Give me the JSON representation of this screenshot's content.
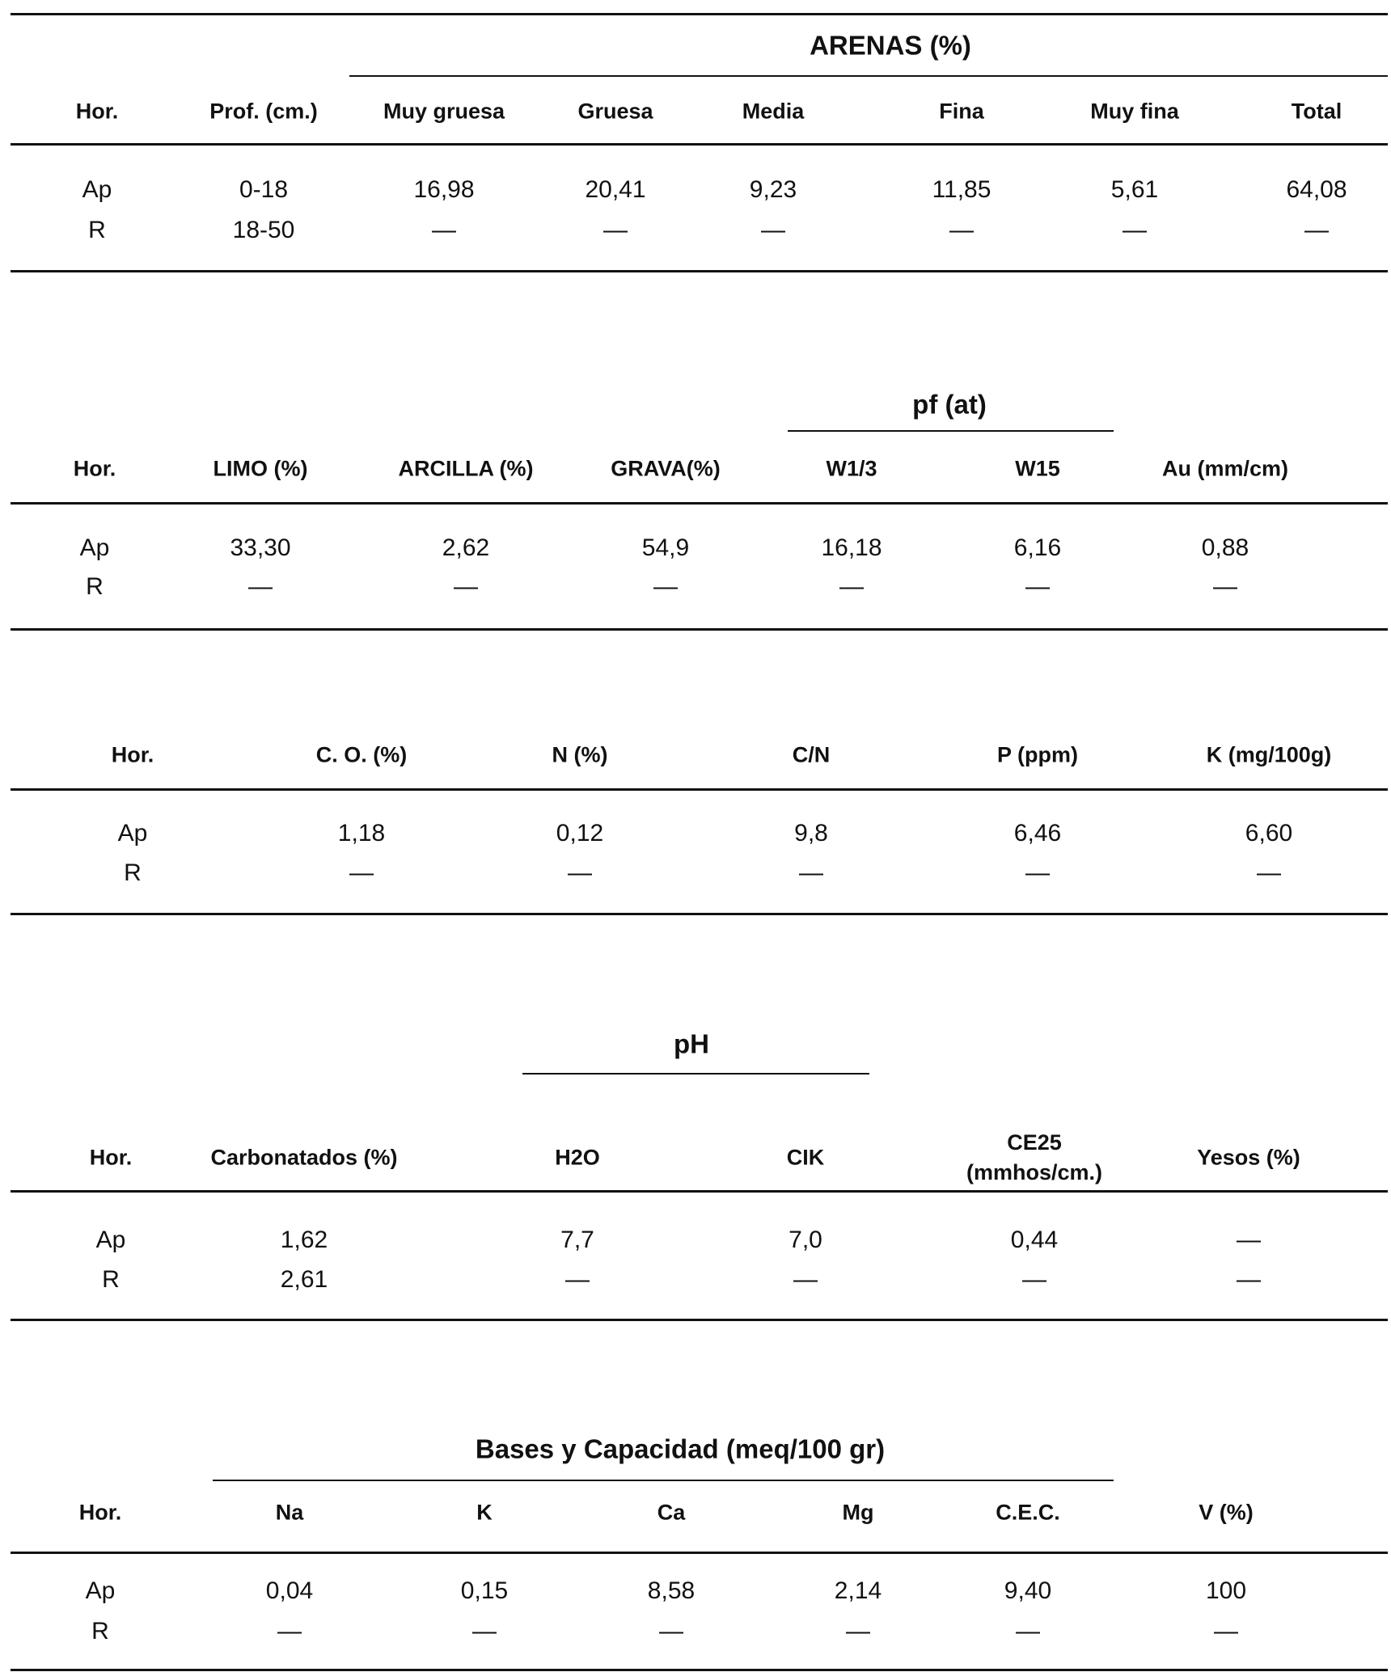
{
  "tables": [
    {
      "group_title": "ARENAS (%)",
      "headers": [
        "Hor.",
        "Prof. (cm.)",
        "Muy gruesa",
        "Gruesa",
        "Media",
        "Fina",
        "Muy fina",
        "Total"
      ],
      "rows": [
        [
          "Ap",
          "0-18",
          "16,98",
          "20,41",
          "9,23",
          "11,85",
          "5,61",
          "64,08"
        ],
        [
          "R",
          "18-50",
          "—",
          "—",
          "—",
          "—",
          "—",
          "—"
        ]
      ]
    },
    {
      "group_title": "pf (at)",
      "headers": [
        "Hor.",
        "LIMO (%)",
        "ARCILLA (%)",
        "GRAVA(%)",
        "W1/3",
        "W15",
        "Au (mm/cm)"
      ],
      "rows": [
        [
          "Ap",
          "33,30",
          "2,62",
          "54,9",
          "16,18",
          "6,16",
          "0,88"
        ],
        [
          "R",
          "—",
          "—",
          "—",
          "—",
          "—",
          "—"
        ]
      ]
    },
    {
      "headers": [
        "Hor.",
        "C. O. (%)",
        "N (%)",
        "C/N",
        "P (ppm)",
        "K (mg/100g)"
      ],
      "rows": [
        [
          "Ap",
          "1,18",
          "0,12",
          "9,8",
          "6,46",
          "6,60"
        ],
        [
          "R",
          "—",
          "—",
          "—",
          "—",
          "—"
        ]
      ]
    },
    {
      "group_title": "pH",
      "headers": [
        "Hor.",
        "Carbonatados (%)",
        "H2O",
        "CIK",
        "CE25 (mmhos/cm.)",
        "Yesos (%)"
      ],
      "rows": [
        [
          "Ap",
          "1,62",
          "7,7",
          "7,0",
          "0,44",
          "—"
        ],
        [
          "R",
          "2,61",
          "—",
          "—",
          "—",
          "—"
        ]
      ]
    },
    {
      "group_title": "Bases y Capacidad (meq/100 gr)",
      "headers": [
        "Hor.",
        "Na",
        "K",
        "Ca",
        "Mg",
        "C.E.C.",
        "V (%)"
      ],
      "rows": [
        [
          "Ap",
          "0,04",
          "0,15",
          "8,58",
          "2,14",
          "9,40",
          "100"
        ],
        [
          "R",
          "—",
          "—",
          "—",
          "—",
          "—",
          "—"
        ]
      ]
    }
  ]
}
